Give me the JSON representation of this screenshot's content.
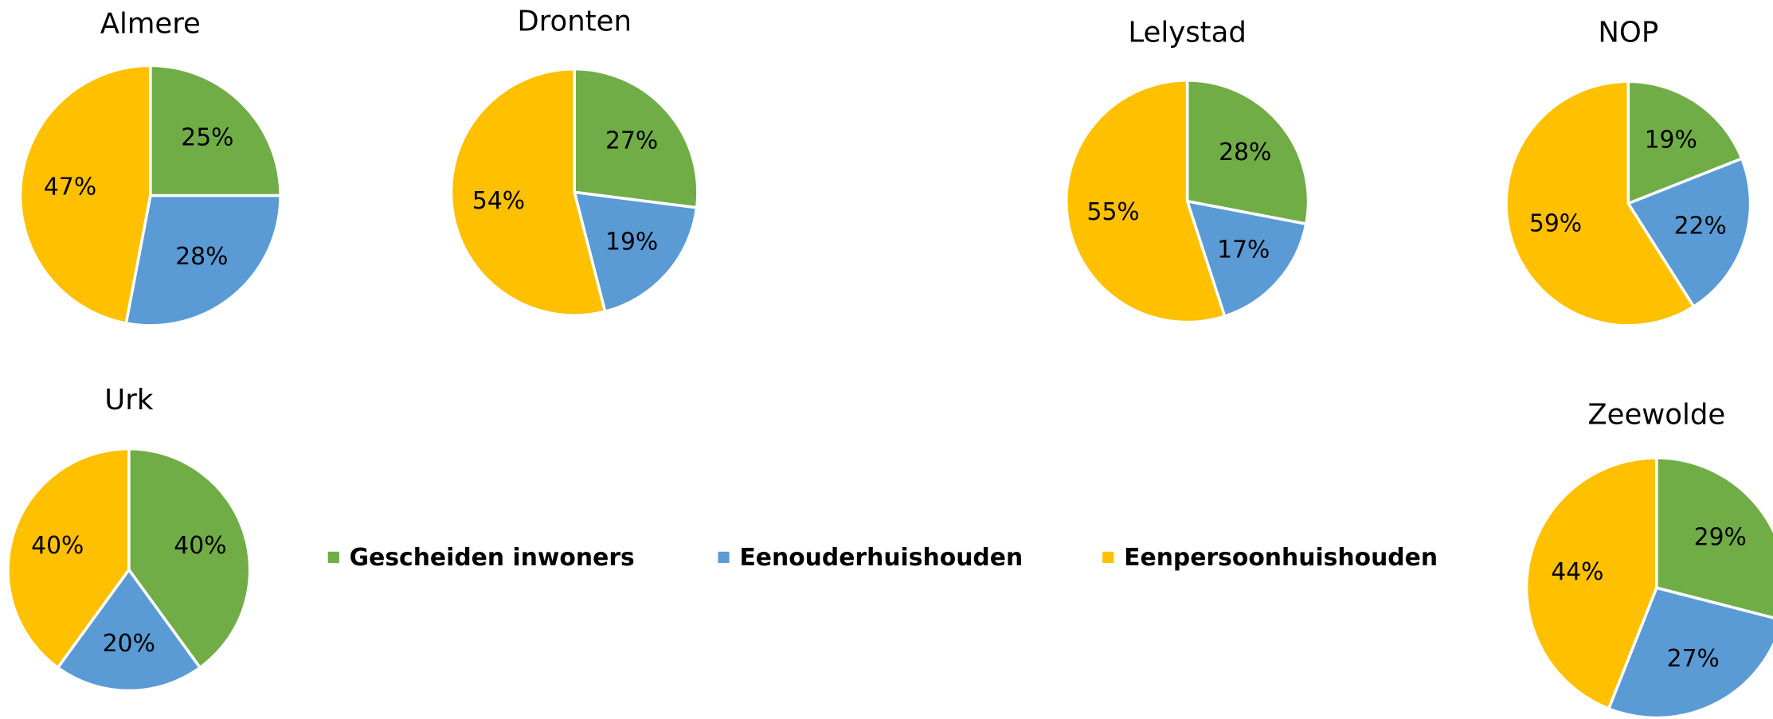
{
  "chart_data": [
    {
      "type": "pie",
      "title": "Almere",
      "categories": [
        "Gescheiden inwoners",
        "Eenouderhuishouden",
        "Eenpersoonhuishouden"
      ],
      "values": [
        25,
        28,
        47
      ],
      "value_labels": [
        "25%",
        "28%",
        "47%"
      ],
      "colors": [
        "#70ad47",
        "#5b9bd5",
        "#ffc000"
      ]
    },
    {
      "type": "pie",
      "title": "Dronten",
      "categories": [
        "Gescheiden inwoners",
        "Eenouderhuishouden",
        "Eenpersoonhuishouden"
      ],
      "values": [
        27,
        19,
        54
      ],
      "value_labels": [
        "27%",
        "19%",
        "54%"
      ],
      "colors": [
        "#70ad47",
        "#5b9bd5",
        "#ffc000"
      ]
    },
    {
      "type": "pie",
      "title": "Lelystad",
      "categories": [
        "Gescheiden inwoners",
        "Eenouderhuishouden",
        "Eenpersoonhuishouden"
      ],
      "values": [
        28,
        17,
        55
      ],
      "value_labels": [
        "28%",
        "17%",
        "55%"
      ],
      "colors": [
        "#70ad47",
        "#5b9bd5",
        "#ffc000"
      ]
    },
    {
      "type": "pie",
      "title": "NOP",
      "categories": [
        "Gescheiden inwoners",
        "Eenouderhuishouden",
        "Eenpersoonhuishouden"
      ],
      "values": [
        19,
        22,
        59
      ],
      "value_labels": [
        "19%",
        "22%",
        "59%"
      ],
      "colors": [
        "#70ad47",
        "#5b9bd5",
        "#ffc000"
      ]
    },
    {
      "type": "pie",
      "title": "Urk",
      "categories": [
        "Gescheiden inwoners",
        "Eenouderhuishouden",
        "Eenpersoonhuishouden"
      ],
      "values": [
        40,
        20,
        40
      ],
      "value_labels": [
        "40%",
        "20%",
        "40%"
      ],
      "colors": [
        "#70ad47",
        "#5b9bd5",
        "#ffc000"
      ]
    },
    {
      "type": "pie",
      "title": "Zeewolde",
      "categories": [
        "Gescheiden inwoners",
        "Eenouderhuishouden",
        "Eenpersoonhuishouden"
      ],
      "values": [
        29,
        27,
        44
      ],
      "value_labels": [
        "29%",
        "27%",
        "44%"
      ],
      "colors": [
        "#70ad47",
        "#5b9bd5",
        "#ffc000"
      ]
    }
  ]
}
